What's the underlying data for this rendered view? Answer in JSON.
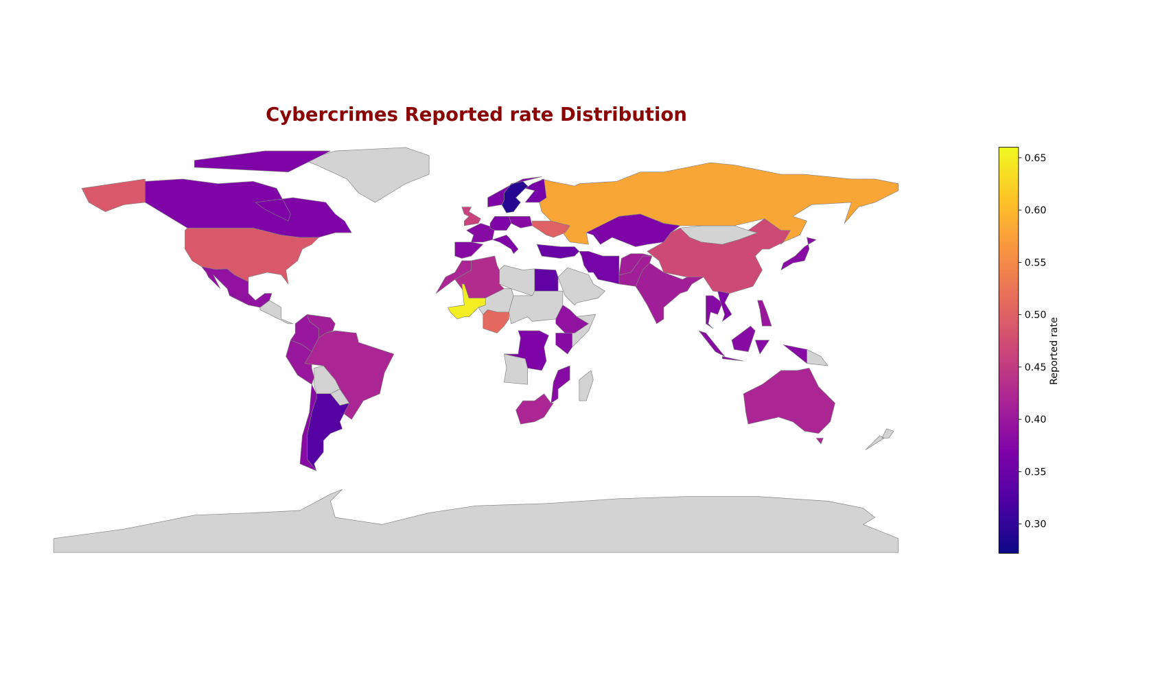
{
  "chart_data": {
    "type": "choropleth",
    "title": "Cybercrimes Reported rate Distribution",
    "colorbar_label": "Reported rate",
    "colormap": "plasma",
    "clim": [
      0.272,
      0.66
    ],
    "cticks": [
      {
        "value": 0.3,
        "label": "0.30"
      },
      0.35,
      {
        "value": 0.4,
        "label": "0.40"
      },
      0.45,
      {
        "value": 0.5,
        "label": "0.50"
      },
      0.55,
      {
        "value": 0.6,
        "label": "0.60"
      },
      0.65
    ],
    "values": [
      0.58,
      0.49,
      0.37,
      0.39,
      0.4,
      0.41,
      0.4,
      0.42,
      0.33,
      0.38,
      0.29,
      0.37,
      0.36,
      0.46,
      0.38,
      0.38,
      0.37,
      0.38,
      0.37,
      0.5,
      0.35,
      0.37,
      0.47,
      0.41,
      0.41,
      0.36,
      0.34,
      0.43,
      0.42,
      0.65,
      0.51,
      0.39,
      0.37,
      0.38,
      0.38,
      0.42,
      0.38,
      0.37,
      0.38,
      0.4,
      0.38,
      0.42,
      0.41
    ],
    "missing_color": "#d3d3d3"
  }
}
